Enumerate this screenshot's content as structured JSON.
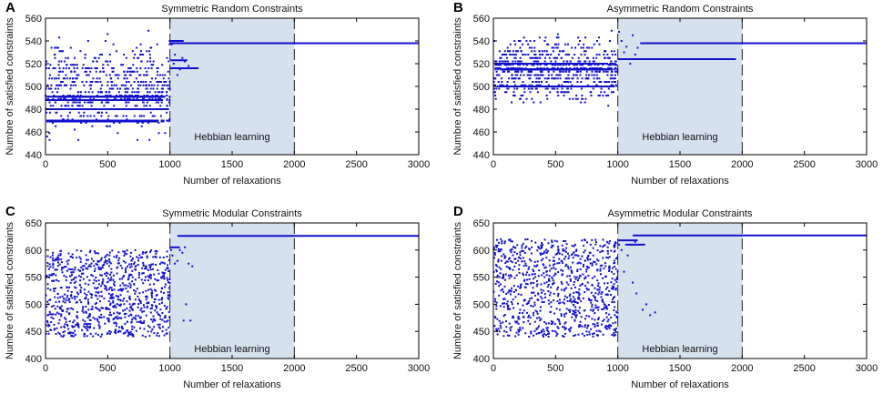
{
  "chart_data": [
    {
      "panel": "A",
      "type": "scatter",
      "title": "Symmetric Random Constraints",
      "xlabel": "Number of relaxations",
      "ylabel": "Numbre of satisfied constraints",
      "xlim": [
        0,
        3000
      ],
      "ylim": [
        440,
        560
      ],
      "xticks": [
        0,
        500,
        1000,
        1500,
        2000,
        2500,
        3000
      ],
      "yticks": [
        440,
        460,
        480,
        500,
        520,
        540,
        560
      ],
      "shaded_region": {
        "x": [
          1000,
          2000
        ],
        "label": "Hebbian learning",
        "label_y": 453,
        "color": "#d6e1ee"
      },
      "marker_color": "#1010cc",
      "scatter": {
        "x_range": [
          0,
          1000
        ],
        "y_range": [
          448,
          552
        ],
        "count": 700,
        "quantized": true,
        "bands": [
          {
            "y": 470,
            "width": 3
          },
          {
            "y": 480,
            "width": 2
          },
          {
            "y": 488,
            "width": 2
          },
          {
            "y": 491,
            "width": 2
          }
        ]
      },
      "post_points": [
        [
          1005,
          540
        ],
        [
          1015,
          537
        ],
        [
          1030,
          520
        ],
        [
          1040,
          528
        ],
        [
          1060,
          510
        ],
        [
          1080,
          515
        ],
        [
          1100,
          525
        ],
        [
          1120,
          522
        ],
        [
          1150,
          518
        ]
      ],
      "segments": [
        {
          "x": [
            1000,
            3000
          ],
          "y": 538
        },
        {
          "x": [
            1000,
            1110
          ],
          "y": 540
        },
        {
          "x": [
            1000,
            1230
          ],
          "y": 516
        },
        {
          "x": [
            1000,
            1140
          ],
          "y": 523
        }
      ]
    },
    {
      "panel": "B",
      "type": "scatter",
      "title": "Asymmetric Random Constraints",
      "xlabel": "Number of relaxations",
      "ylabel": "Numbre of satisfied constraints",
      "xlim": [
        0,
        3000
      ],
      "ylim": [
        440,
        560
      ],
      "xticks": [
        0,
        500,
        1000,
        1500,
        2000,
        2500,
        3000
      ],
      "yticks": [
        440,
        460,
        480,
        500,
        520,
        540,
        560
      ],
      "shaded_region": {
        "x": [
          1000,
          2000
        ],
        "label": "Hebbian learning",
        "label_y": 453,
        "color": "#d6e1ee"
      },
      "marker_color": "#1010cc",
      "scatter": {
        "x_range": [
          0,
          1000
        ],
        "y_range": [
          476,
          552
        ],
        "count": 750,
        "quantized": true,
        "bands": [
          {
            "y": 500,
            "width": 2
          },
          {
            "y": 515,
            "width": 2
          },
          {
            "y": 520,
            "width": 2
          }
        ]
      },
      "post_points": [
        [
          1010,
          548
        ],
        [
          1030,
          540
        ],
        [
          1050,
          530
        ],
        [
          1070,
          535
        ],
        [
          1100,
          520
        ],
        [
          1120,
          545
        ],
        [
          1140,
          528
        ],
        [
          1160,
          534
        ]
      ],
      "segments": [
        {
          "x": [
            1180,
            3000
          ],
          "y": 538
        },
        {
          "x": [
            1000,
            1950
          ],
          "y": 524
        }
      ]
    },
    {
      "panel": "C",
      "type": "scatter",
      "title": "Symmetric Modular Constraints",
      "xlabel": "Number of relaxations",
      "ylabel": "Numbre of satisfied constraints",
      "xlim": [
        0,
        3000
      ],
      "ylim": [
        400,
        650
      ],
      "xticks": [
        0,
        500,
        1000,
        1500,
        2000,
        2500,
        3000
      ],
      "yticks": [
        400,
        450,
        500,
        550,
        600,
        650
      ],
      "shaded_region": {
        "x": [
          1000,
          2000
        ],
        "label": "Hebbian learning",
        "label_y": 412,
        "color": "#d6e1ee"
      },
      "marker_color": "#1010cc",
      "scatter": {
        "x_range": [
          0,
          1000
        ],
        "y_range": [
          440,
          600
        ],
        "count": 900,
        "quantized": false,
        "bands": []
      },
      "post_points": [
        [
          1010,
          600
        ],
        [
          1020,
          590
        ],
        [
          1040,
          575
        ],
        [
          1060,
          580
        ],
        [
          1080,
          600
        ],
        [
          1100,
          595
        ],
        [
          1120,
          605
        ],
        [
          1150,
          575
        ],
        [
          1165,
          470
        ],
        [
          1180,
          570
        ],
        [
          1130,
          500
        ],
        [
          1110,
          470
        ]
      ],
      "segments": [
        {
          "x": [
            1060,
            3000
          ],
          "y": 626
        },
        {
          "x": [
            1000,
            1080
          ],
          "y": 605
        }
      ]
    },
    {
      "panel": "D",
      "type": "scatter",
      "title": "Asymmetric Modular Constraints",
      "xlabel": "Number of relaxations",
      "ylabel": "Numbre of satisfied constraints",
      "xlim": [
        0,
        3000
      ],
      "ylim": [
        400,
        650
      ],
      "xticks": [
        0,
        500,
        1000,
        1500,
        2000,
        2500,
        3000
      ],
      "yticks": [
        400,
        450,
        500,
        550,
        600,
        650
      ],
      "shaded_region": {
        "x": [
          1000,
          2000
        ],
        "label": "Hebbian learning",
        "label_y": 412,
        "color": "#d6e1ee"
      },
      "marker_color": "#1010cc",
      "scatter": {
        "x_range": [
          0,
          1000
        ],
        "y_range": [
          440,
          620
        ],
        "count": 900,
        "quantized": false,
        "bands": []
      },
      "post_points": [
        [
          1010,
          610
        ],
        [
          1030,
          600
        ],
        [
          1050,
          560
        ],
        [
          1080,
          590
        ],
        [
          1120,
          540
        ],
        [
          1150,
          520
        ],
        [
          1200,
          490
        ],
        [
          1230,
          500
        ],
        [
          1260,
          480
        ],
        [
          1300,
          485
        ],
        [
          1100,
          610
        ],
        [
          1140,
          615
        ]
      ],
      "segments": [
        {
          "x": [
            1120,
            3000
          ],
          "y": 627
        },
        {
          "x": [
            1000,
            1160
          ],
          "y": 618
        },
        {
          "x": [
            1060,
            1220
          ],
          "y": 610
        }
      ]
    }
  ]
}
